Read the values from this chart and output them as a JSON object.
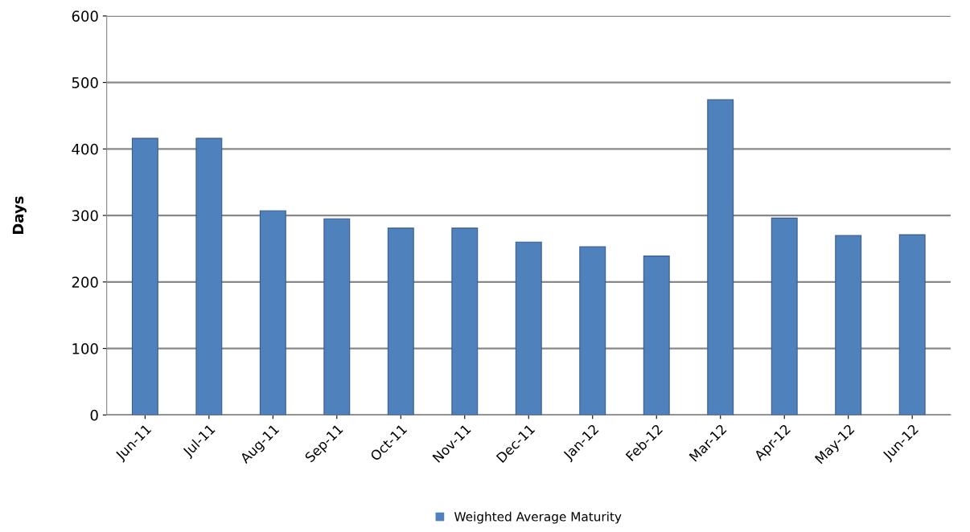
{
  "chart_data": {
    "type": "bar",
    "ylabel": "Days",
    "categories": [
      "Jun-11",
      "Jul-11",
      "Aug-11",
      "Sep-11",
      "Oct-11",
      "Nov-11",
      "Dec-11",
      "Jan-12",
      "Feb-12",
      "Mar-12",
      "Apr-12",
      "May-12",
      "Jun-12"
    ],
    "series": [
      {
        "name": "Weighted Average Maturity",
        "color": "#4f81bd",
        "values": [
          416,
          416,
          307,
          295,
          281,
          281,
          260,
          253,
          239,
          474,
          296,
          270,
          271
        ]
      }
    ],
    "ylim": [
      0,
      600
    ],
    "yticks": [
      0,
      100,
      200,
      300,
      400,
      500,
      600
    ],
    "grid": "y",
    "legend": "bottom"
  }
}
